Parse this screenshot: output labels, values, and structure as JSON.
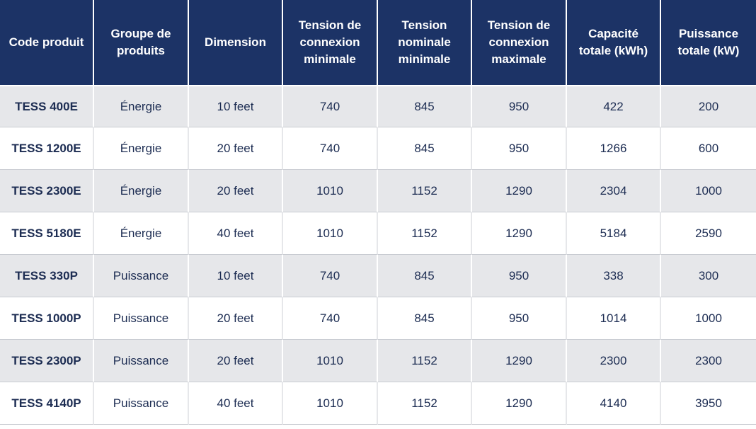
{
  "table": {
    "headers": [
      "Code produit",
      "Groupe de produits",
      "Dimension",
      "Tension de connexion minimale",
      "Tension nominale minimale",
      "Tension de connexion maximale",
      "Capacité totale (kWh)",
      "Puissance totale (kW)"
    ],
    "rows": [
      [
        "TESS 400E",
        "Énergie",
        "10 feet",
        "740",
        "845",
        "950",
        "422",
        "200"
      ],
      [
        "TESS 1200E",
        "Énergie",
        "20 feet",
        "740",
        "845",
        "950",
        "1266",
        "600"
      ],
      [
        "TESS 2300E",
        "Énergie",
        "20 feet",
        "1010",
        "1152",
        "1290",
        "2304",
        "1000"
      ],
      [
        "TESS 5180E",
        "Énergie",
        "40 feet",
        "1010",
        "1152",
        "1290",
        "5184",
        "2590"
      ],
      [
        "TESS 330P",
        "Puissance",
        "10 feet",
        "740",
        "845",
        "950",
        "338",
        "300"
      ],
      [
        "TESS 1000P",
        "Puissance",
        "20 feet",
        "740",
        "845",
        "950",
        "1014",
        "1000"
      ],
      [
        "TESS 2300P",
        "Puissance",
        "20 feet",
        "1010",
        "1152",
        "1290",
        "2300",
        "2300"
      ],
      [
        "TESS 4140P",
        "Puissance",
        "40 feet",
        "1010",
        "1152",
        "1290",
        "4140",
        "3950"
      ]
    ]
  },
  "colors": {
    "header_bg": "#1c3366",
    "header_text": "#ffffff",
    "row_shade": "#e6e7ea",
    "cell_text": "#1c2c52"
  }
}
